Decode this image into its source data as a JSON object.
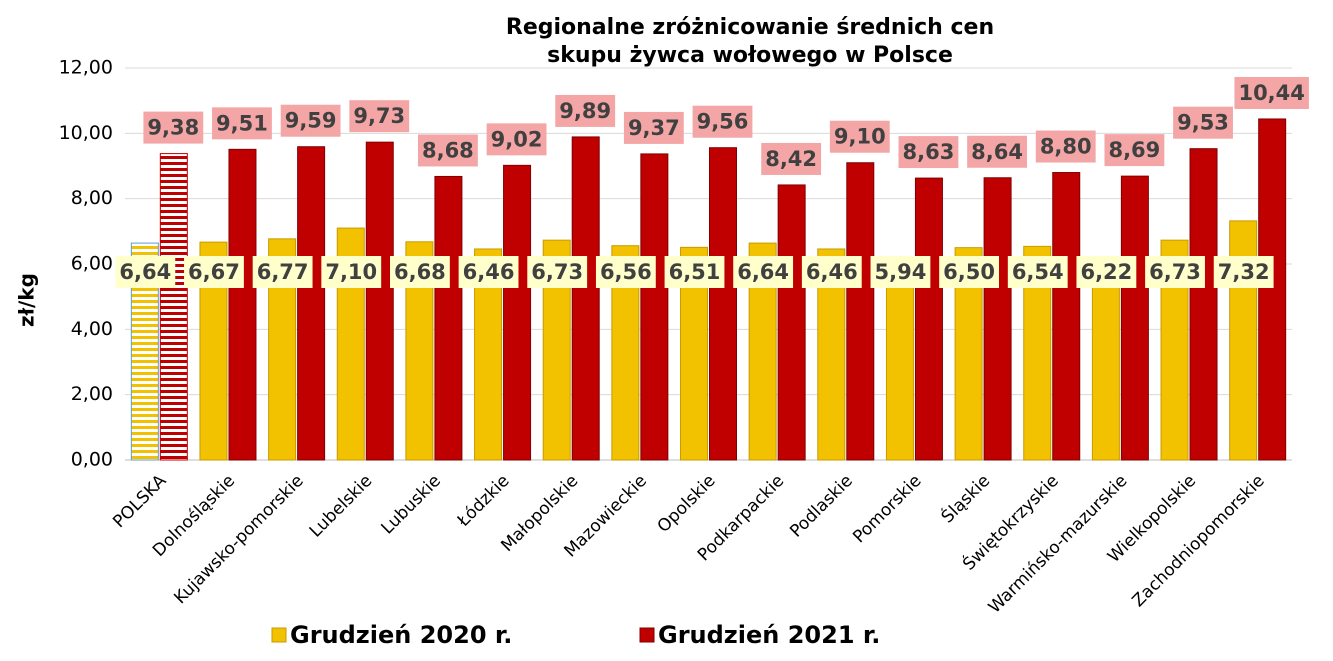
{
  "chart_data": {
    "type": "bar",
    "title": "Regionalne zróżnicowanie średnich cen skupu żywca wołowego w Polsce",
    "y_label": "zł/kg",
    "categories": [
      "POLSKA",
      "Dolnośląskie",
      "Kujawsko-pomorskie",
      "Lubelskie",
      "Lubuskie",
      "Łódzkie",
      "Małopolskie",
      "Mazowieckie",
      "Opolskie",
      "Podkarpackie",
      "Podlaskie",
      "Pomorskie",
      "Śląskie",
      "Świętokrzyskie",
      "Warmińsko-mazurskie",
      "Wielkopolskie",
      "Zachodniopomorskie"
    ],
    "series": [
      {
        "name": "Grudzień 2020 r.",
        "color": "#f2c200",
        "values": [
          6.64,
          6.67,
          6.77,
          7.1,
          6.68,
          6.46,
          6.73,
          6.56,
          6.51,
          6.64,
          6.46,
          5.94,
          6.5,
          6.54,
          6.22,
          6.73,
          7.32
        ],
        "value_labels": [
          "6,64",
          "6,67",
          "6,77",
          "7,10",
          "6,68",
          "6,46",
          "6,73",
          "6,56",
          "6,51",
          "6,64",
          "6,46",
          "5,94",
          "6,50",
          "6,54",
          "6,22",
          "6,73",
          "7,32"
        ]
      },
      {
        "name": "Grudzień 2021 r.",
        "color": "#c00000",
        "values": [
          9.38,
          9.51,
          9.59,
          9.73,
          8.68,
          9.02,
          9.89,
          9.37,
          9.56,
          8.42,
          9.1,
          8.63,
          8.64,
          8.8,
          8.69,
          9.53,
          10.44
        ],
        "value_labels": [
          "9,38",
          "9,51",
          "9,59",
          "9,73",
          "8,68",
          "9,02",
          "9,89",
          "9,37",
          "9,56",
          "8,42",
          "9,10",
          "8,63",
          "8,64",
          "8,80",
          "8,69",
          "9,53",
          "10,44"
        ]
      }
    ],
    "ylim": [
      0,
      12
    ],
    "yticks": [
      {
        "value": 0,
        "label": "0,00"
      },
      {
        "value": 2,
        "label": "2,00"
      },
      {
        "value": 4,
        "label": "4,00"
      },
      {
        "value": 6,
        "label": "6,00"
      },
      {
        "value": 8,
        "label": "8,00"
      },
      {
        "value": 10,
        "label": "10,00"
      },
      {
        "value": 12,
        "label": "12,00"
      }
    ],
    "grid": true,
    "legend": "bottom"
  }
}
